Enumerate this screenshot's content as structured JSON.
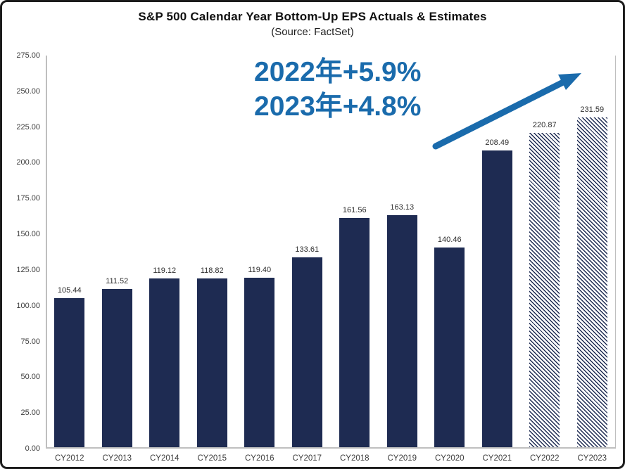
{
  "header": {
    "title": "S&P 500 Calendar Year Bottom-Up EPS Actuals & Estimates",
    "subtitle": "(Source: FactSet)"
  },
  "chart_data": {
    "type": "bar",
    "title": "S&P 500 Calendar Year Bottom-Up EPS Actuals & Estimates",
    "subtitle": "(Source: FactSet)",
    "categories": [
      "CY2012",
      "CY2013",
      "CY2014",
      "CY2015",
      "CY2016",
      "CY2017",
      "CY2018",
      "CY2019",
      "CY2020",
      "CY2021",
      "CY2022",
      "CY2023"
    ],
    "values": [
      105.44,
      111.52,
      119.12,
      118.82,
      119.4,
      133.61,
      161.56,
      163.13,
      140.46,
      208.49,
      220.87,
      231.59
    ],
    "value_labels": [
      "105.44",
      "111.52",
      "119.12",
      "118.82",
      "119.40",
      "133.61",
      "161.56",
      "163.13",
      "140.46",
      "208.49",
      "220.87",
      "231.59"
    ],
    "estimate_flags": [
      false,
      false,
      false,
      false,
      false,
      false,
      false,
      false,
      false,
      false,
      true,
      true
    ],
    "estimate_style": "diagonal-hatch",
    "xlabel": "",
    "ylabel": "",
    "ylim": [
      0,
      275
    ],
    "y_ticks": [
      0,
      25,
      50,
      75,
      100,
      125,
      150,
      175,
      200,
      225,
      250,
      275
    ],
    "y_tick_labels": [
      "0.00",
      "25.00",
      "50.00",
      "75.00",
      "100.00",
      "125.00",
      "150.00",
      "175.00",
      "200.00",
      "225.00",
      "250.00",
      "275.00"
    ],
    "grid": false,
    "legend": "none",
    "annotations": [
      "2022年+5.9%",
      "2023年+4.8%"
    ],
    "colors": {
      "bar_navy": "#1E2B52",
      "accent_blue": "#1A6BAC",
      "axis_gray": "#BFBFBF",
      "frame_border": "#1C1C1C"
    }
  }
}
